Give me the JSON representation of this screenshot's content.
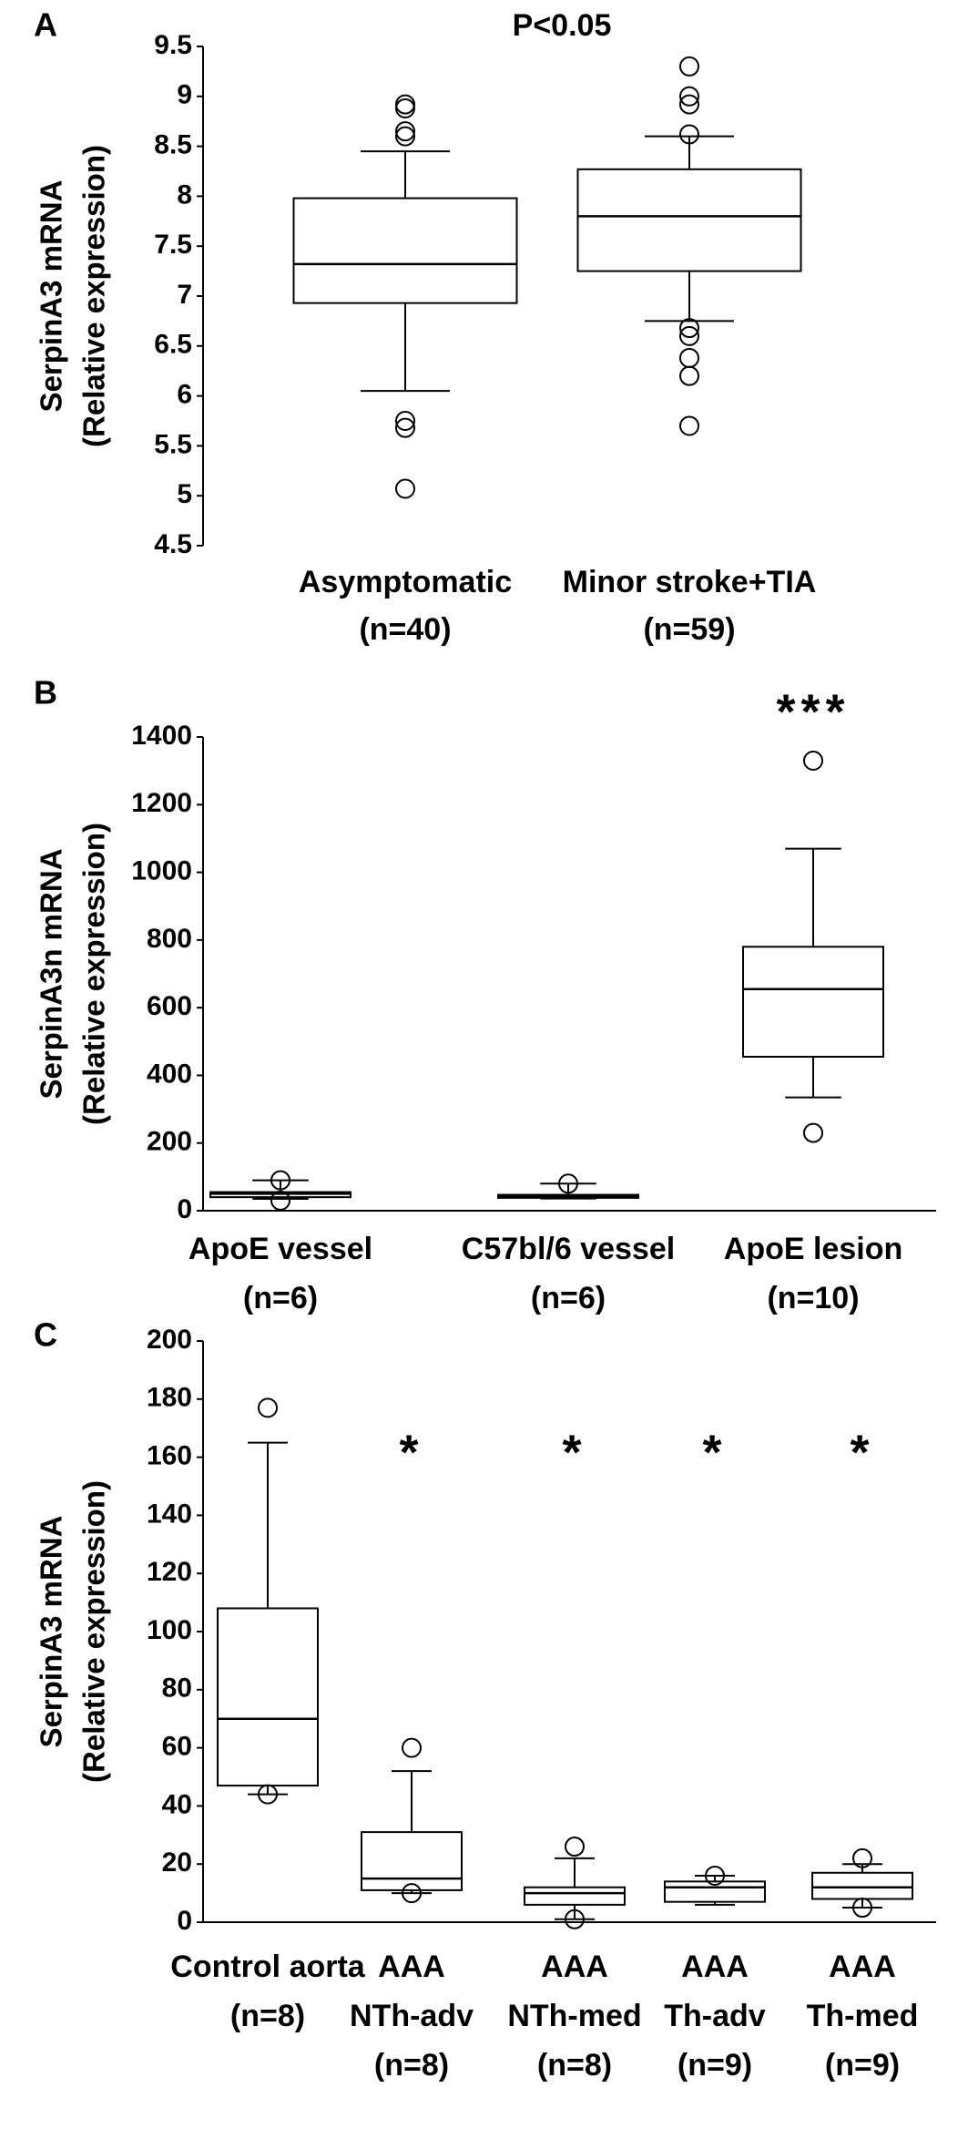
{
  "chart_data": [
    {
      "type": "box",
      "panel": "A",
      "annotation": "P<0.05",
      "ylabel": [
        "SerpinA3 mRNA",
        "(Relative expression)"
      ],
      "categories": [
        [
          "Asymptomatic",
          "(n=40)"
        ],
        [
          "Minor stroke+TIA",
          "(n=59)"
        ]
      ],
      "boxes": [
        {
          "whislo": 6.05,
          "q1": 6.93,
          "med": 7.32,
          "q3": 7.98,
          "whishi": 8.45,
          "fliers": [
            8.92,
            8.88,
            8.65,
            8.6,
            5.75,
            5.68,
            5.07
          ]
        },
        {
          "whislo": 6.75,
          "q1": 7.25,
          "med": 7.8,
          "q3": 8.27,
          "whishi": 8.6,
          "fliers": [
            9.3,
            9.0,
            8.92,
            8.62,
            6.68,
            6.6,
            6.38,
            6.2,
            5.7
          ]
        }
      ],
      "ylim": [
        4.5,
        9.5
      ],
      "yticks": [
        4.5,
        5,
        5.5,
        6,
        6.5,
        7,
        7.5,
        8,
        8.5,
        9,
        9.5
      ],
      "color": "#000000"
    },
    {
      "type": "box",
      "panel": "B",
      "ylabel": [
        "SerpinA3n mRNA",
        "(Relative expression)"
      ],
      "categories": [
        [
          "ApoE vessel",
          "(n=6)"
        ],
        [
          "C57bl/6 vessel",
          "(n=6)"
        ],
        [
          "ApoE lesion",
          "(n=10)"
        ]
      ],
      "box_labels": [
        null,
        null,
        "***"
      ],
      "boxes": [
        {
          "whislo": 35,
          "q1": 40,
          "med": 50,
          "q3": 55,
          "whishi": 90,
          "fliers": [
            90,
            30
          ]
        },
        {
          "whislo": 36,
          "q1": 38,
          "med": 42,
          "q3": 47,
          "whishi": 80,
          "fliers": [
            80
          ]
        },
        {
          "whislo": 335,
          "q1": 455,
          "med": 655,
          "q3": 780,
          "whishi": 1070,
          "fliers": [
            1330,
            230
          ]
        }
      ],
      "ylim": [
        0,
        1400
      ],
      "yticks": [
        0,
        200,
        400,
        600,
        800,
        1000,
        1200,
        1400
      ],
      "color": "#000000"
    },
    {
      "type": "box",
      "panel": "C",
      "ylabel": [
        "SerpinA3 mRNA",
        "(Relative expression)"
      ],
      "categories": [
        [
          "Control aorta",
          "(n=8)"
        ],
        [
          "AAA",
          "NTh-adv",
          "(n=8)"
        ],
        [
          "AAA",
          "NTh-med",
          "(n=8)"
        ],
        [
          "AAA",
          "Th-adv",
          "(n=9)"
        ],
        [
          "AAA",
          "Th-med",
          "(n=9)"
        ]
      ],
      "box_labels": [
        null,
        "*",
        "*",
        "*",
        "*"
      ],
      "boxes": [
        {
          "whislo": 44,
          "q1": 47,
          "med": 70,
          "q3": 108,
          "whishi": 165,
          "fliers": [
            177,
            44
          ]
        },
        {
          "whislo": 10,
          "q1": 11,
          "med": 15,
          "q3": 31,
          "whishi": 52,
          "fliers": [
            60,
            10
          ]
        },
        {
          "whislo": 1,
          "q1": 6,
          "med": 10,
          "q3": 12,
          "whishi": 22,
          "fliers": [
            26,
            1
          ]
        },
        {
          "whislo": 6,
          "q1": 7,
          "med": 12,
          "q3": 14,
          "whishi": 16,
          "fliers": [
            16
          ]
        },
        {
          "whislo": 5,
          "q1": 8,
          "med": 12,
          "q3": 17,
          "whishi": 20,
          "fliers": [
            22,
            5
          ]
        }
      ],
      "ylim": [
        0,
        200
      ],
      "yticks": [
        0,
        20,
        40,
        60,
        80,
        100,
        120,
        140,
        160,
        180,
        200
      ],
      "color": "#000000"
    }
  ]
}
